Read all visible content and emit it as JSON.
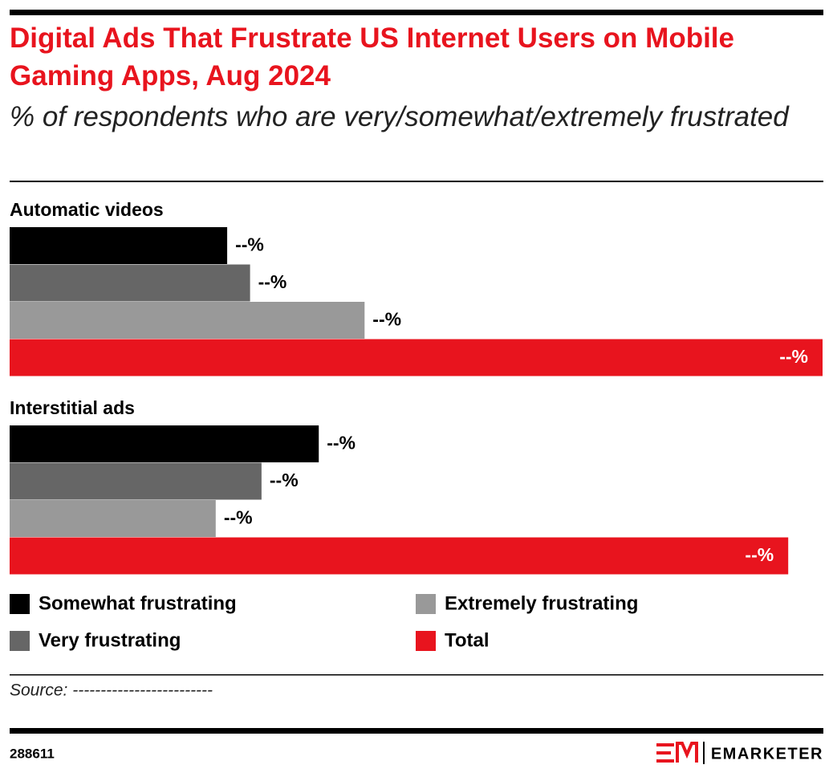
{
  "chart_data": {
    "type": "bar",
    "orientation": "horizontal",
    "title": "Digital Ads That Frustrate US Internet Users on Mobile Gaming Apps, Aug 2024",
    "subtitle": "% of respondents who are very/somewhat/extremely frustrated",
    "categories": [
      "Automatic videos",
      "Interstitial ads"
    ],
    "series": [
      {
        "name": "Somewhat frustrating",
        "color": "#000000",
        "values": [
          19,
          27
        ],
        "value_labels": [
          "--%",
          "--%"
        ]
      },
      {
        "name": "Very frustrating",
        "color": "#666666",
        "values": [
          21,
          22
        ],
        "value_labels": [
          "--%",
          "--%"
        ]
      },
      {
        "name": "Extremely frustrating",
        "color": "#999999",
        "values": [
          31,
          18
        ],
        "value_labels": [
          "--%",
          "--%"
        ]
      },
      {
        "name": "Total",
        "color": "#e8141e",
        "values": [
          71,
          68
        ],
        "value_labels": [
          "--%",
          "--%"
        ]
      }
    ]
  },
  "footer": {
    "source": "Source: -------------------------",
    "id": "288611",
    "brand": "EMARKETER"
  }
}
